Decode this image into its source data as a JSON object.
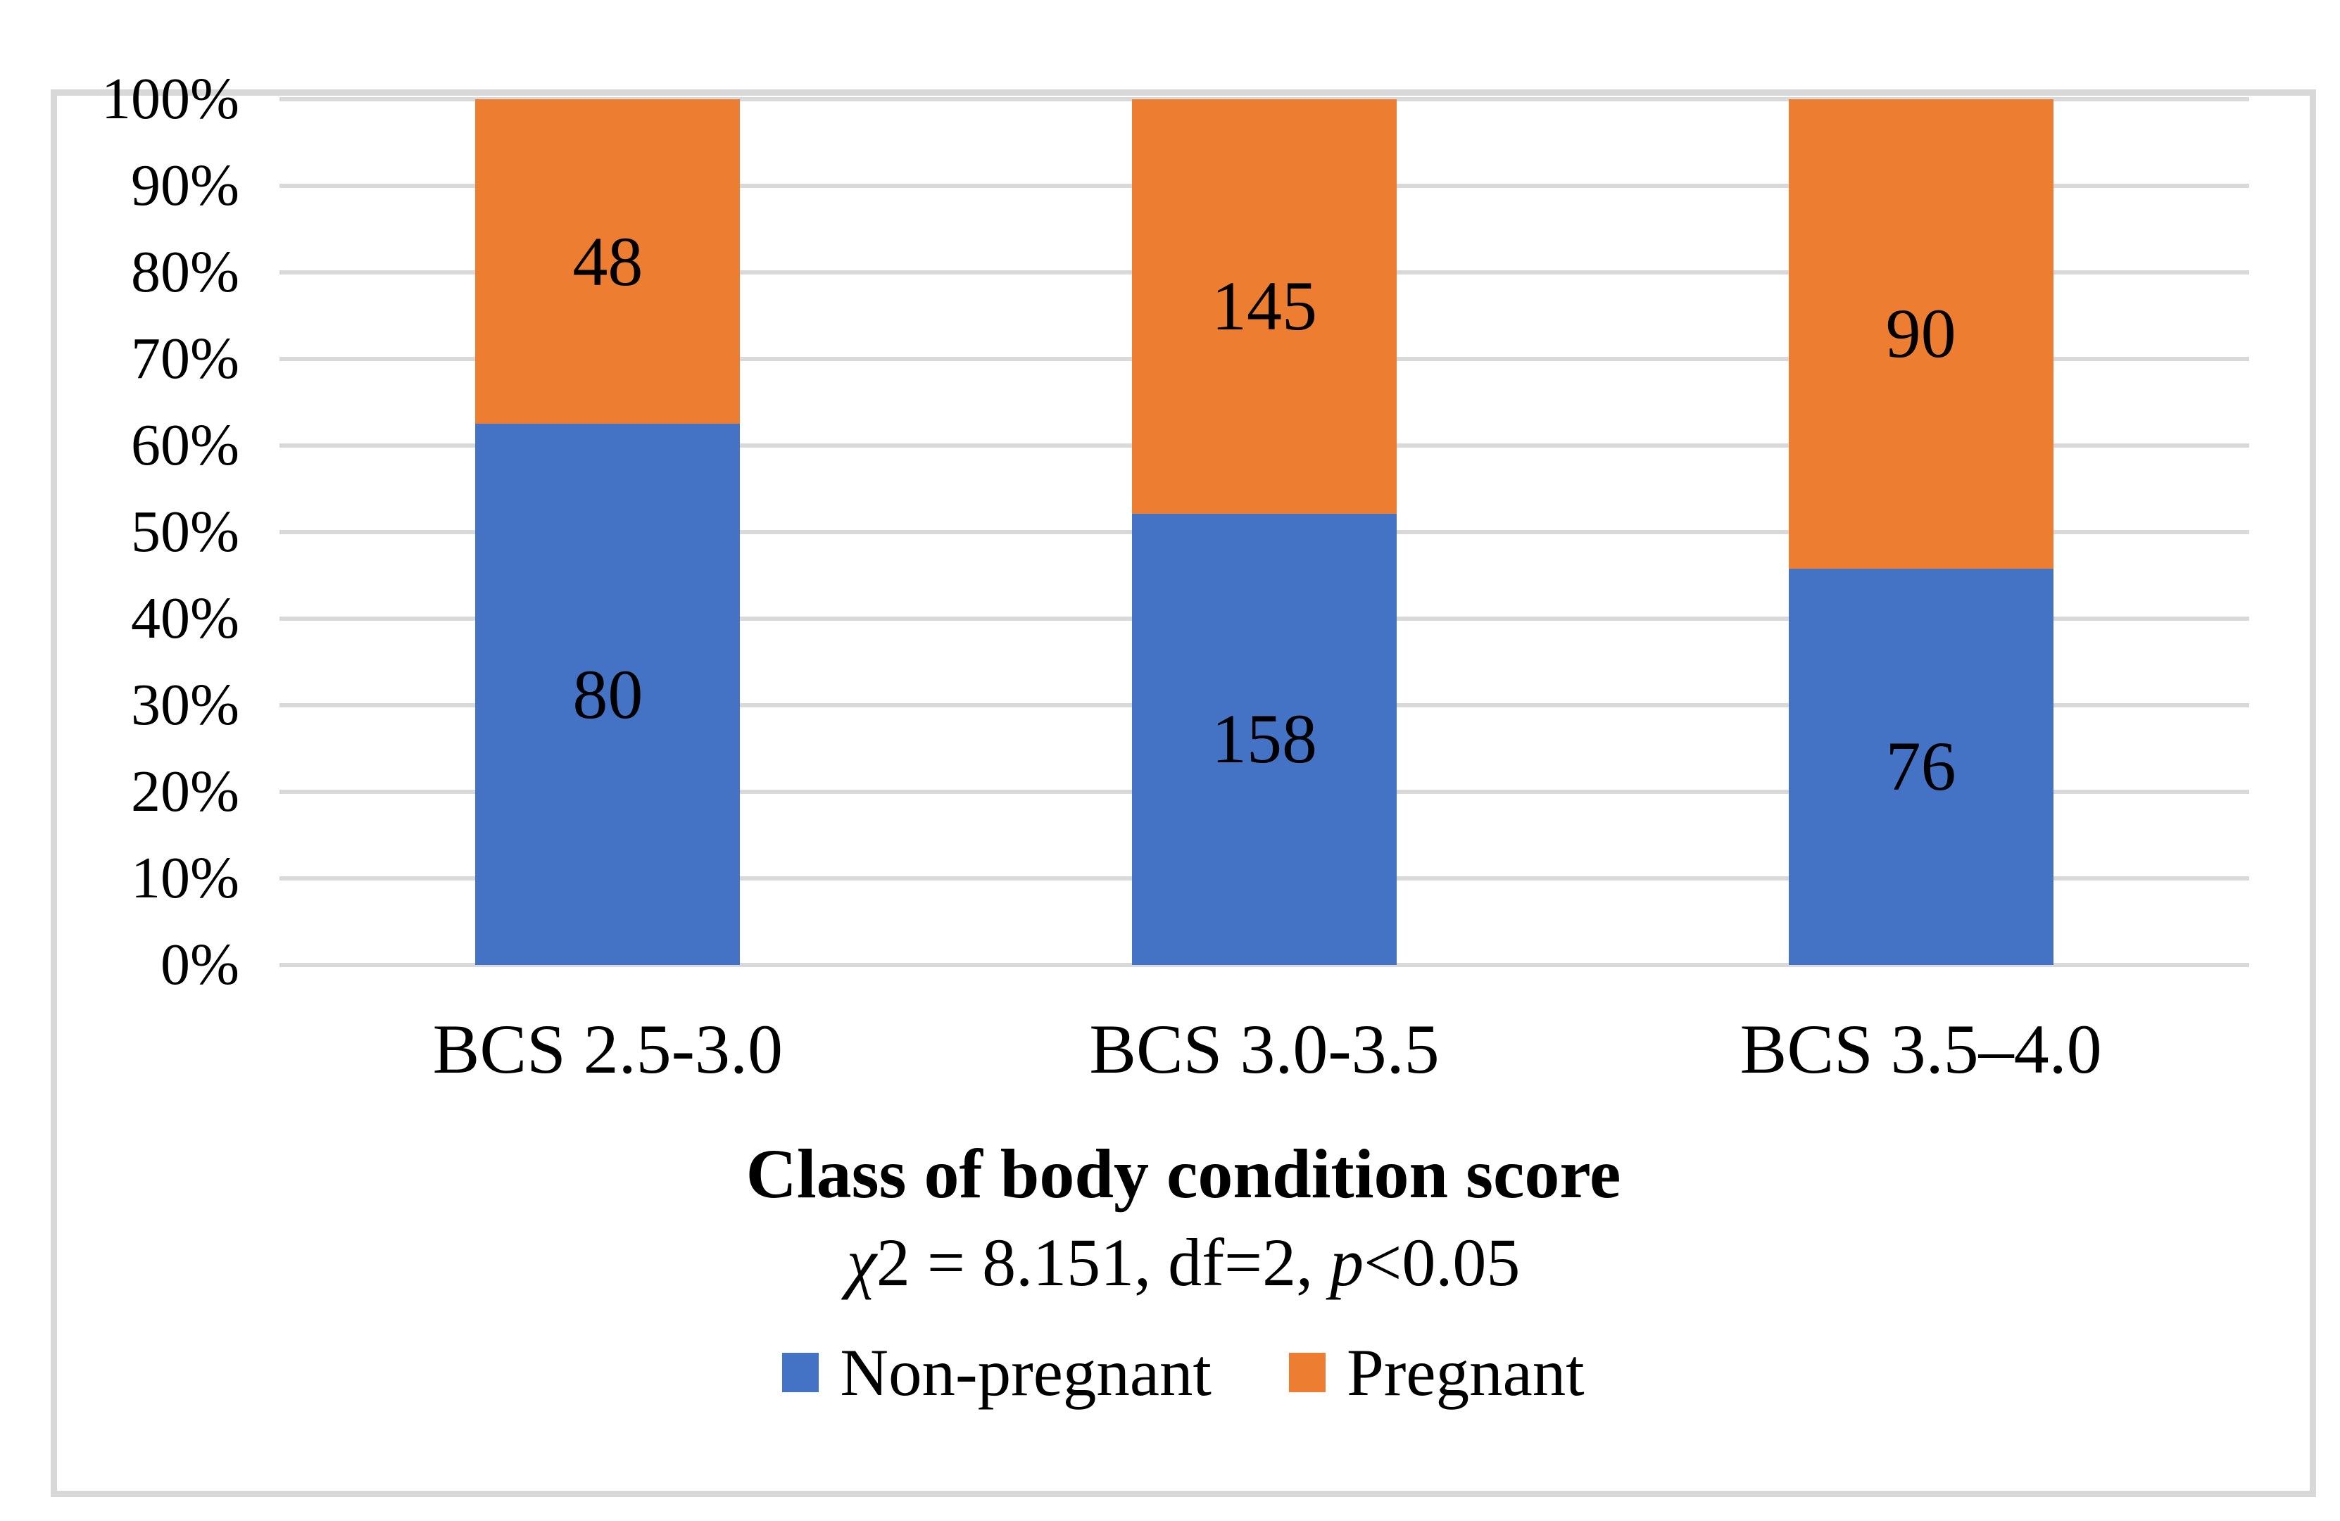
{
  "chart_data": {
    "type": "bar",
    "subtype": "stacked-100-percent",
    "title": "",
    "xlabel": "Class of body condition score",
    "ylabel": "",
    "categories": [
      "BCS 2.5-3.0",
      "BCS 3.0-3.5",
      "BCS 3.5–4.0"
    ],
    "series": [
      {
        "name": "Non-pregnant",
        "color": "#4472c4",
        "values": [
          80,
          158,
          76
        ]
      },
      {
        "name": "Pregnant",
        "color": "#ed7d31",
        "values": [
          48,
          145,
          90
        ]
      }
    ],
    "stat_note_full": "χ2 = 8.151, df=2, p<0.05",
    "stat_note_parts": {
      "chi": "χ",
      "chi_rest": "2 = 8.151, df=2, ",
      "p": "p",
      "p_rest": "<0.05"
    },
    "y_ticks": [
      "100%",
      "90%",
      "80%",
      "70%",
      "60%",
      "50%",
      "40%",
      "30%",
      "20%",
      "10%",
      "0%"
    ],
    "ylim": [
      0,
      100
    ],
    "grid": "horizontal",
    "gridline_color": "#d9d9d9",
    "legend_position": "bottom"
  }
}
